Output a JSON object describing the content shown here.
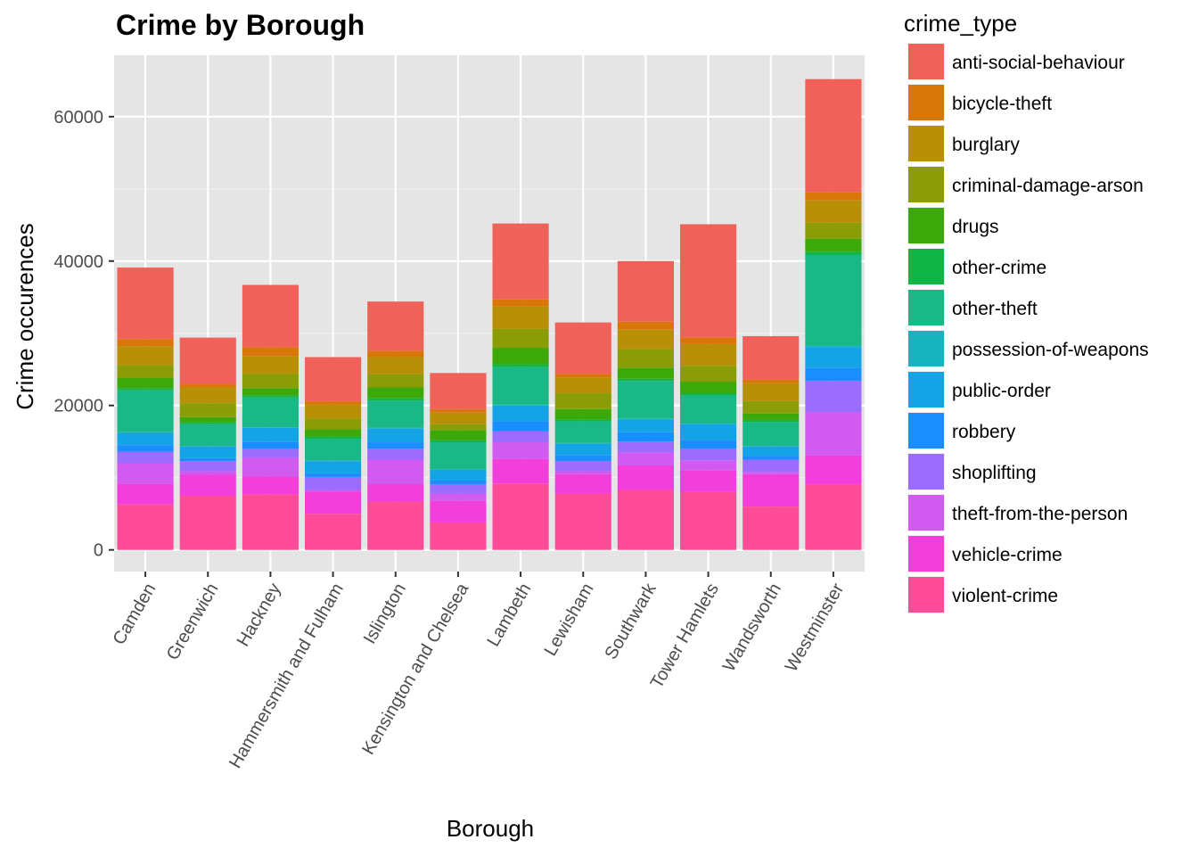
{
  "chart_data": {
    "type": "bar",
    "stacked": true,
    "title": "Crime by Borough",
    "xlabel": "Borough",
    "ylabel": "Crime occurences",
    "ylim": [
      -3000,
      68500
    ],
    "yticks": [
      0,
      20000,
      40000,
      60000
    ],
    "legend_title": "crime_type",
    "legend_position": "right",
    "background": "#e5e5e5",
    "categories": [
      "Camden",
      "Greenwich",
      "Hackney",
      "Hammersmith and Fulham",
      "Islington",
      "Kensington and Chelsea",
      "Lambeth",
      "Lewisham",
      "Southwark",
      "Tower Hamlets",
      "Wandsworth",
      "Westminster"
    ],
    "series": [
      {
        "name": "violent-crime",
        "color": "#FF4C99",
        "values": [
          6300,
          7500,
          7700,
          5000,
          6700,
          3800,
          9200,
          7800,
          8300,
          8000,
          6000,
          9100
        ]
      },
      {
        "name": "vehicle-crime",
        "color": "#F23EDB",
        "values": [
          2900,
          2900,
          2500,
          3100,
          2400,
          3000,
          3400,
          2700,
          3400,
          3000,
          4500,
          4000
        ]
      },
      {
        "name": "theft-from-the-person",
        "color": "#D15AF0",
        "values": [
          2800,
          500,
          2600,
          200,
          3400,
          1000,
          2300,
          400,
          1800,
          1400,
          300,
          6000
        ]
      },
      {
        "name": "shoplifting",
        "color": "#9C6BFF",
        "values": [
          1600,
          1400,
          1200,
          1800,
          1500,
          1300,
          1500,
          1400,
          1500,
          1600,
          1700,
          4300
        ]
      },
      {
        "name": "robbery",
        "color": "#1B8EFF",
        "values": [
          900,
          400,
          1000,
          500,
          900,
          500,
          1400,
          800,
          1300,
          1200,
          500,
          1800
        ]
      },
      {
        "name": "public-order",
        "color": "#14A4E6",
        "values": [
          1700,
          1600,
          1900,
          1700,
          1900,
          1500,
          2200,
          1600,
          1800,
          2200,
          1300,
          2900
        ]
      },
      {
        "name": "possession-of-weapons",
        "color": "#17B4BD",
        "values": [
          100,
          100,
          100,
          100,
          100,
          100,
          100,
          100,
          100,
          100,
          100,
          200
        ]
      },
      {
        "name": "other-theft",
        "color": "#19B886",
        "values": [
          5800,
          3000,
          4100,
          3000,
          3800,
          3700,
          5200,
          3000,
          5200,
          3900,
          3300,
          12600
        ]
      },
      {
        "name": "other-crime",
        "color": "#11B545",
        "values": [
          300,
          300,
          300,
          300,
          300,
          300,
          400,
          300,
          300,
          300,
          300,
          400
        ]
      },
      {
        "name": "drugs",
        "color": "#3DA80A",
        "values": [
          1400,
          700,
          1000,
          1000,
          1500,
          1400,
          2300,
          1400,
          1500,
          1600,
          900,
          1800
        ]
      },
      {
        "name": "criminal-damage-arson",
        "color": "#8A9D06",
        "values": [
          1800,
          1900,
          2000,
          1500,
          1800,
          800,
          2600,
          2200,
          2600,
          2200,
          1700,
          2200
        ]
      },
      {
        "name": "burglary",
        "color": "#B79008",
        "values": [
          2600,
          2200,
          2400,
          1900,
          2400,
          1600,
          3100,
          2200,
          2700,
          3000,
          2500,
          3100
        ]
      },
      {
        "name": "bicycle-theft",
        "color": "#D9760A",
        "values": [
          1000,
          500,
          1300,
          500,
          900,
          500,
          1000,
          500,
          1100,
          900,
          500,
          1100
        ]
      },
      {
        "name": "anti-social-behaviour",
        "color": "#F0615A",
        "values": [
          9900,
          6400,
          8600,
          6100,
          6800,
          5000,
          10500,
          7100,
          8400,
          15700,
          6000,
          15700
        ]
      }
    ]
  }
}
